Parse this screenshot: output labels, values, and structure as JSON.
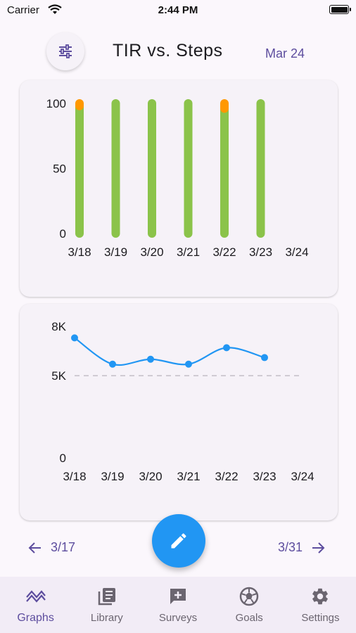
{
  "status_bar": {
    "carrier": "Carrier",
    "time": "2:44 PM"
  },
  "header": {
    "title": "TIR vs. Steps",
    "date": "Mar 24"
  },
  "chart_data": [
    {
      "type": "bar",
      "categories": [
        "3/18",
        "3/19",
        "3/20",
        "3/21",
        "3/22",
        "3/23",
        "3/24"
      ],
      "series": [
        {
          "values": [
            98,
            100,
            100,
            100,
            96,
            100,
            null
          ],
          "color": "#8bc34a"
        },
        {
          "values": [
            2,
            0,
            0,
            0,
            4,
            0,
            null
          ],
          "color": "#ff9800"
        }
      ],
      "stacked": true,
      "ylim": [
        0,
        100
      ],
      "yticks": [
        "0",
        "50",
        "100"
      ],
      "grid": false
    },
    {
      "type": "line",
      "categories": [
        "3/18",
        "3/19",
        "3/20",
        "3/21",
        "3/22",
        "3/23",
        "3/24"
      ],
      "series": [
        {
          "values": [
            7300,
            5700,
            6000,
            5700,
            6700,
            6100,
            null
          ],
          "color": "#2196f3"
        }
      ],
      "reference_line": {
        "value": 5000,
        "style": "dashed"
      },
      "ylim": [
        0,
        8000
      ],
      "yticks": [
        {
          "value": 0,
          "label": "0"
        },
        {
          "value": 5000,
          "label": "5K"
        },
        {
          "value": 8000,
          "label": "8K"
        }
      ],
      "grid": false
    }
  ],
  "pager": {
    "prev": "3/17",
    "next": "3/31"
  },
  "nav": [
    {
      "label": "Graphs",
      "icon": "graph-icon",
      "active": true
    },
    {
      "label": "Library",
      "icon": "library-icon",
      "active": false
    },
    {
      "label": "Surveys",
      "icon": "surveys-icon",
      "active": false
    },
    {
      "label": "Goals",
      "icon": "goals-icon",
      "active": false
    },
    {
      "label": "Settings",
      "icon": "settings-icon",
      "active": false
    }
  ],
  "colors": {
    "accent": "#5d4d9e",
    "fab": "#2196f3",
    "in_range": "#8bc34a",
    "out_of_range": "#ff9800",
    "line": "#2196f3"
  }
}
